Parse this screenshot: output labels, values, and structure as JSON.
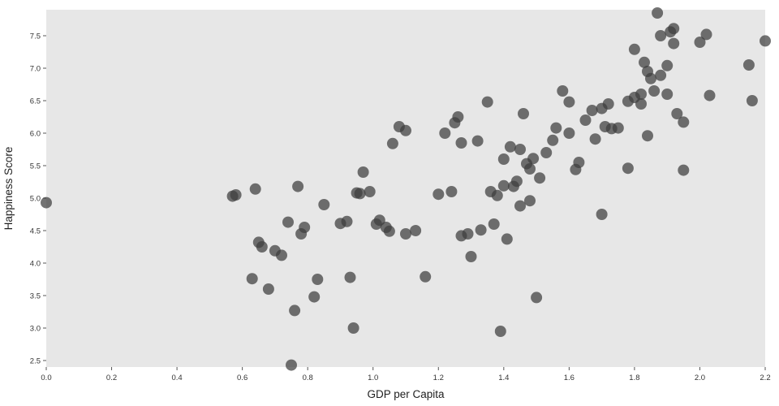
{
  "chart_data": {
    "type": "scatter",
    "title": "",
    "xlabel": "GDP per Capita",
    "ylabel": "Happiness Score",
    "xlim": [
      0.0,
      2.2
    ],
    "ylim": [
      2.4,
      7.9
    ],
    "xticks": [
      0.0,
      0.2,
      0.4,
      0.6,
      0.8,
      1.0,
      1.2,
      1.4,
      1.6,
      1.8,
      2.0,
      2.2
    ],
    "yticks": [
      2.5,
      3.0,
      3.5,
      4.0,
      4.5,
      5.0,
      5.5,
      6.0,
      6.5,
      7.0,
      7.5
    ],
    "grid": false,
    "legend": null,
    "style": {
      "plot_bg": "#e7e7e7",
      "figure_bg": "#ffffff",
      "point_color": "#3d3d3d",
      "point_opacity": 0.72,
      "point_radius": 7,
      "tick_color": "#555555",
      "tick_label_color": "#333333",
      "axis_label_color": "#1f1f1f"
    },
    "points": [
      [
        0.0,
        4.93
      ],
      [
        0.57,
        5.03
      ],
      [
        0.58,
        5.05
      ],
      [
        0.63,
        3.76
      ],
      [
        0.64,
        5.14
      ],
      [
        0.65,
        4.32
      ],
      [
        0.66,
        4.25
      ],
      [
        0.68,
        3.6
      ],
      [
        0.7,
        4.19
      ],
      [
        0.72,
        4.12
      ],
      [
        0.74,
        4.63
      ],
      [
        0.75,
        2.43
      ],
      [
        0.76,
        3.27
      ],
      [
        0.77,
        5.18
      ],
      [
        0.78,
        4.45
      ],
      [
        0.79,
        4.55
      ],
      [
        0.82,
        3.48
      ],
      [
        0.83,
        3.75
      ],
      [
        0.85,
        4.9
      ],
      [
        0.9,
        4.61
      ],
      [
        0.92,
        4.64
      ],
      [
        0.93,
        3.78
      ],
      [
        0.94,
        3.0
      ],
      [
        0.95,
        5.08
      ],
      [
        0.96,
        5.07
      ],
      [
        0.97,
        5.4
      ],
      [
        0.99,
        5.1
      ],
      [
        1.01,
        4.6
      ],
      [
        1.02,
        4.66
      ],
      [
        1.04,
        4.55
      ],
      [
        1.05,
        4.49
      ],
      [
        1.06,
        5.84
      ],
      [
        1.08,
        6.1
      ],
      [
        1.1,
        6.04
      ],
      [
        1.1,
        4.45
      ],
      [
        1.13,
        4.5
      ],
      [
        1.16,
        3.79
      ],
      [
        1.2,
        5.06
      ],
      [
        1.22,
        6.0
      ],
      [
        1.24,
        5.1
      ],
      [
        1.25,
        6.16
      ],
      [
        1.26,
        6.25
      ],
      [
        1.27,
        5.85
      ],
      [
        1.27,
        4.42
      ],
      [
        1.29,
        4.45
      ],
      [
        1.3,
        4.1
      ],
      [
        1.32,
        5.88
      ],
      [
        1.33,
        4.51
      ],
      [
        1.35,
        6.48
      ],
      [
        1.36,
        5.1
      ],
      [
        1.37,
        4.6
      ],
      [
        1.38,
        5.04
      ],
      [
        1.39,
        2.95
      ],
      [
        1.4,
        5.6
      ],
      [
        1.4,
        5.19
      ],
      [
        1.41,
        4.37
      ],
      [
        1.42,
        5.79
      ],
      [
        1.43,
        5.18
      ],
      [
        1.44,
        5.26
      ],
      [
        1.45,
        4.88
      ],
      [
        1.45,
        5.75
      ],
      [
        1.46,
        6.3
      ],
      [
        1.47,
        5.53
      ],
      [
        1.48,
        5.45
      ],
      [
        1.48,
        4.96
      ],
      [
        1.49,
        5.61
      ],
      [
        1.5,
        3.47
      ],
      [
        1.51,
        5.31
      ],
      [
        1.53,
        5.7
      ],
      [
        1.55,
        5.89
      ],
      [
        1.56,
        6.08
      ],
      [
        1.58,
        6.65
      ],
      [
        1.6,
        6.0
      ],
      [
        1.6,
        6.48
      ],
      [
        1.62,
        5.44
      ],
      [
        1.63,
        5.55
      ],
      [
        1.65,
        6.2
      ],
      [
        1.67,
        6.35
      ],
      [
        1.68,
        5.91
      ],
      [
        1.7,
        6.38
      ],
      [
        1.7,
        4.75
      ],
      [
        1.71,
        6.1
      ],
      [
        1.72,
        6.45
      ],
      [
        1.73,
        6.07
      ],
      [
        1.75,
        6.08
      ],
      [
        1.78,
        6.49
      ],
      [
        1.78,
        5.46
      ],
      [
        1.8,
        6.55
      ],
      [
        1.8,
        7.29
      ],
      [
        1.82,
        6.6
      ],
      [
        1.82,
        6.45
      ],
      [
        1.83,
        7.09
      ],
      [
        1.84,
        6.95
      ],
      [
        1.84,
        5.96
      ],
      [
        1.85,
        6.84
      ],
      [
        1.86,
        6.65
      ],
      [
        1.87,
        7.85
      ],
      [
        1.88,
        7.5
      ],
      [
        1.88,
        6.89
      ],
      [
        1.9,
        7.04
      ],
      [
        1.9,
        6.6
      ],
      [
        1.91,
        7.56
      ],
      [
        1.92,
        7.61
      ],
      [
        1.92,
        7.38
      ],
      [
        1.93,
        6.3
      ],
      [
        1.95,
        5.43
      ],
      [
        1.95,
        6.17
      ],
      [
        2.0,
        7.4
      ],
      [
        2.02,
        7.52
      ],
      [
        2.03,
        6.58
      ],
      [
        2.15,
        7.05
      ],
      [
        2.16,
        6.5
      ],
      [
        2.2,
        7.42
      ]
    ]
  }
}
